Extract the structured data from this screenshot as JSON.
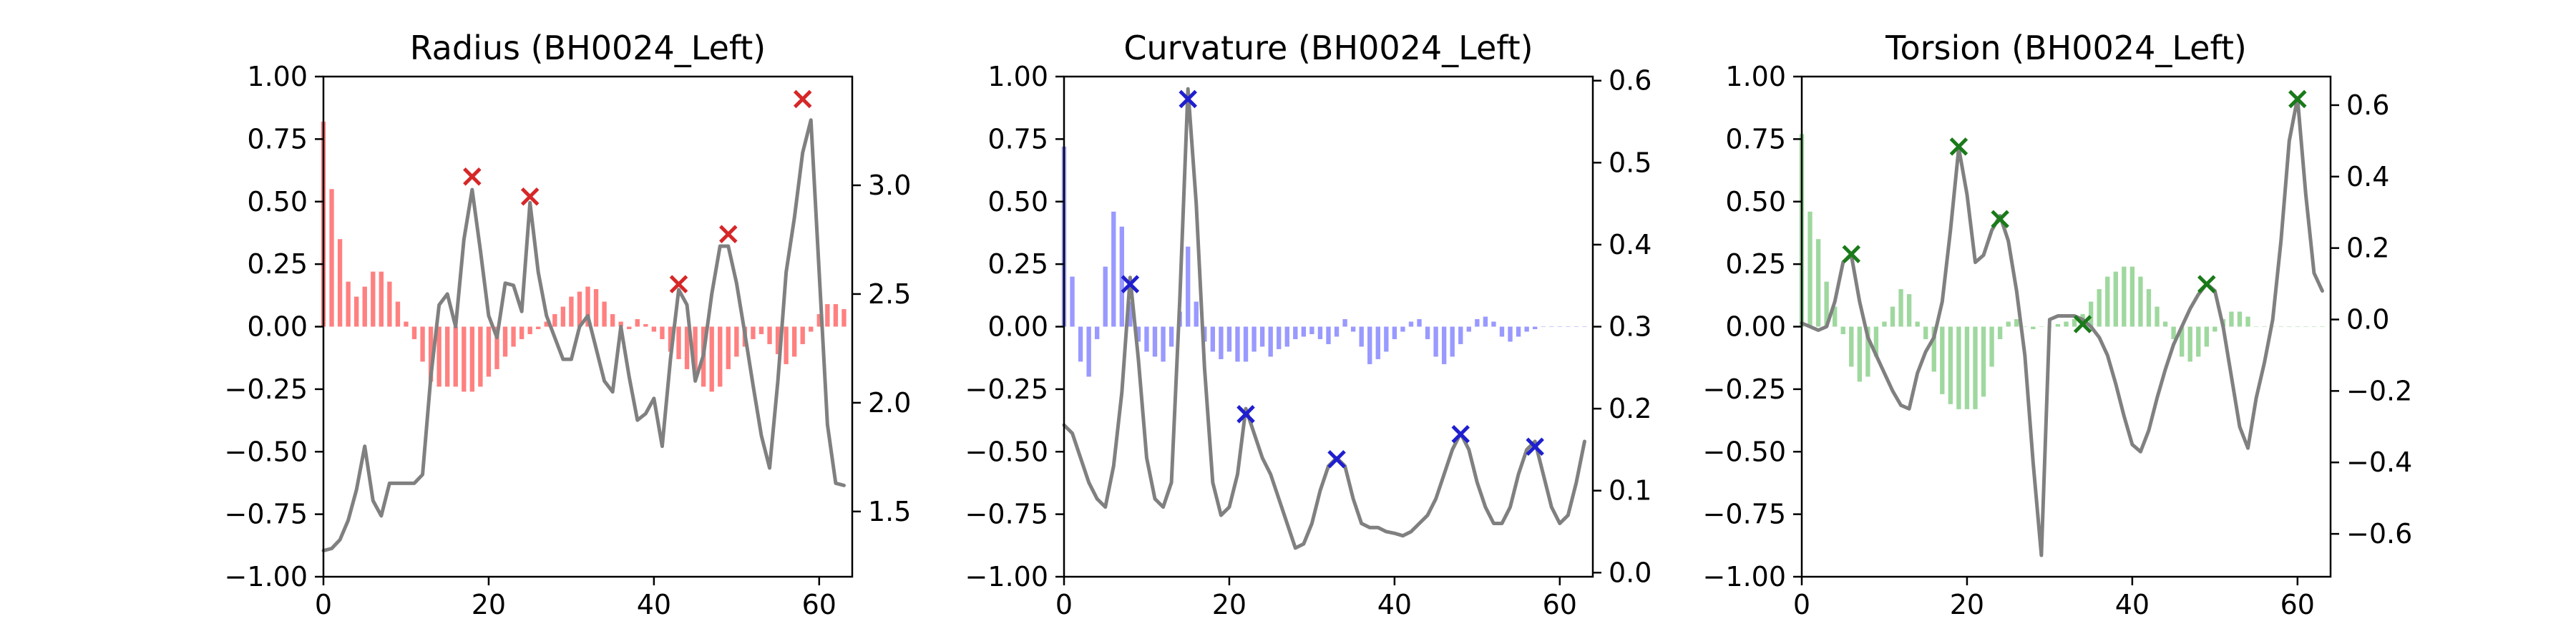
{
  "chart_data": [
    {
      "type": "bar",
      "title": "Radius (BH0024_Left)",
      "xlim": [
        0,
        64
      ],
      "ylim": [
        -1,
        1
      ],
      "xticks": [
        0,
        20,
        40,
        60
      ],
      "yticks": [
        -1.0,
        -0.75,
        -0.5,
        -0.25,
        0.0,
        0.25,
        0.5,
        0.75,
        1.0
      ],
      "y2lim": [
        1.2,
        3.5
      ],
      "y2ticks": [
        1.5,
        2.0,
        2.5,
        3.0
      ],
      "bar_color": "#ff8080",
      "line_color": "#808080",
      "marker_color": "#d62728",
      "bars": [
        0.82,
        0.55,
        0.35,
        0.18,
        0.12,
        0.16,
        0.22,
        0.22,
        0.18,
        0.1,
        0.02,
        -0.05,
        -0.14,
        -0.22,
        -0.24,
        -0.24,
        -0.24,
        -0.26,
        -0.26,
        -0.24,
        -0.2,
        -0.17,
        -0.12,
        -0.08,
        -0.05,
        -0.03,
        -0.01,
        0.02,
        0.05,
        0.08,
        0.12,
        0.14,
        0.16,
        0.15,
        0.1,
        0.05,
        0.02,
        -0.01,
        0.03,
        0.01,
        -0.02,
        -0.05,
        -0.1,
        -0.13,
        -0.17,
        -0.2,
        -0.24,
        -0.26,
        -0.24,
        -0.17,
        -0.12,
        -0.08,
        -0.05,
        -0.03,
        -0.07,
        -0.11,
        -0.15,
        -0.12,
        -0.07,
        -0.02,
        0.05,
        0.09,
        0.09,
        0.07
      ],
      "line": [
        1.32,
        1.33,
        1.37,
        1.46,
        1.6,
        1.8,
        1.55,
        1.48,
        1.63,
        1.63,
        1.63,
        1.63,
        1.67,
        2.12,
        2.45,
        2.5,
        2.35,
        2.75,
        2.98,
        2.7,
        2.4,
        2.3,
        2.55,
        2.54,
        2.42,
        2.92,
        2.6,
        2.4,
        2.3,
        2.2,
        2.2,
        2.35,
        2.4,
        2.25,
        2.1,
        2.05,
        2.35,
        2.12,
        1.92,
        1.95,
        2.02,
        1.8,
        2.2,
        2.52,
        2.45,
        2.1,
        2.22,
        2.5,
        2.72,
        2.72,
        2.55,
        2.32,
        2.08,
        1.85,
        1.7,
        2.1,
        2.6,
        2.85,
        3.15,
        3.3,
        2.6,
        1.9,
        1.63,
        1.62
      ],
      "peaks_x": [
        18,
        25,
        43,
        49,
        58
      ],
      "peaks_y": [
        0.6,
        0.52,
        0.17,
        0.37,
        0.91
      ]
    },
    {
      "type": "bar",
      "title": "Curvature (BH0024_Left)",
      "xlim": [
        0,
        64
      ],
      "ylim": [
        -1,
        1
      ],
      "xticks": [
        0,
        20,
        40,
        60
      ],
      "yticks": [
        -1.0,
        -0.75,
        -0.5,
        -0.25,
        0.0,
        0.25,
        0.5,
        0.75,
        1.0
      ],
      "y2lim": [
        -0.005,
        0.605
      ],
      "y2ticks": [
        0.0,
        0.1,
        0.2,
        0.3,
        0.4,
        0.5,
        0.6
      ],
      "bar_color": "#9999ff",
      "line_color": "#808080",
      "marker_color": "#1f1fcf",
      "bars": [
        0.72,
        0.2,
        -0.14,
        -0.2,
        -0.05,
        0.24,
        0.46,
        0.4,
        0.1,
        -0.06,
        -0.1,
        -0.12,
        -0.14,
        -0.08,
        0.06,
        0.32,
        0.1,
        -0.06,
        -0.1,
        -0.13,
        -0.1,
        -0.14,
        -0.14,
        -0.1,
        -0.08,
        -0.12,
        -0.09,
        -0.08,
        -0.05,
        -0.04,
        -0.03,
        -0.05,
        -0.07,
        -0.04,
        0.03,
        -0.02,
        -0.08,
        -0.15,
        -0.13,
        -0.1,
        -0.05,
        -0.02,
        0.02,
        0.03,
        -0.05,
        -0.12,
        -0.15,
        -0.12,
        -0.07,
        -0.02,
        0.03,
        0.04,
        0.02,
        -0.04,
        -0.06,
        -0.04,
        -0.02,
        -0.01,
        0.0,
        0.0,
        0.0,
        0.0,
        0.0,
        0.0
      ],
      "line": [
        0.18,
        0.17,
        0.14,
        0.11,
        0.09,
        0.08,
        0.13,
        0.22,
        0.36,
        0.26,
        0.14,
        0.09,
        0.08,
        0.11,
        0.33,
        0.59,
        0.45,
        0.25,
        0.11,
        0.07,
        0.08,
        0.12,
        0.2,
        0.17,
        0.14,
        0.12,
        0.09,
        0.06,
        0.03,
        0.035,
        0.06,
        0.1,
        0.13,
        0.14,
        0.13,
        0.09,
        0.06,
        0.055,
        0.055,
        0.05,
        0.048,
        0.045,
        0.05,
        0.06,
        0.07,
        0.09,
        0.12,
        0.15,
        0.17,
        0.15,
        0.11,
        0.08,
        0.06,
        0.06,
        0.08,
        0.12,
        0.15,
        0.16,
        0.12,
        0.08,
        0.06,
        0.07,
        0.11,
        0.16
      ],
      "peaks_x": [
        8,
        15,
        22,
        33,
        48,
        57
      ],
      "peaks_y": [
        0.17,
        0.91,
        -0.35,
        -0.53,
        -0.43,
        -0.48
      ]
    },
    {
      "type": "bar",
      "title": "Torsion (BH0024_Left)",
      "xlim": [
        0,
        64
      ],
      "ylim": [
        -1,
        1
      ],
      "xticks": [
        0,
        20,
        40,
        60
      ],
      "yticks": [
        -1.0,
        -0.75,
        -0.5,
        -0.25,
        0.0,
        0.25,
        0.5,
        0.75,
        1.0
      ],
      "y2lim": [
        -0.72,
        0.68
      ],
      "y2ticks": [
        -0.6,
        -0.4,
        -0.2,
        0.0,
        0.2,
        0.4,
        0.6
      ],
      "bar_color": "#9fd89f",
      "line_color": "#808080",
      "marker_color": "#1a7a1a",
      "bars": [
        0.77,
        0.46,
        0.35,
        0.18,
        0.08,
        -0.03,
        -0.16,
        -0.22,
        -0.2,
        -0.12,
        0.02,
        0.08,
        0.15,
        0.13,
        0.02,
        -0.05,
        -0.18,
        -0.27,
        -0.31,
        -0.33,
        -0.33,
        -0.33,
        -0.28,
        -0.16,
        -0.05,
        0.02,
        0.03,
        0.0,
        -0.01,
        0.0,
        0.0,
        0.01,
        0.02,
        0.03,
        0.05,
        0.1,
        0.15,
        0.2,
        0.22,
        0.24,
        0.24,
        0.2,
        0.15,
        0.08,
        0.02,
        -0.05,
        -0.12,
        -0.14,
        -0.12,
        -0.08,
        -0.02,
        0.03,
        0.06,
        0.06,
        0.04,
        0.0,
        0.0,
        0.0,
        0.0,
        0.0,
        0.0,
        0.0,
        0.0,
        0.0
      ],
      "line": [
        -0.01,
        -0.02,
        -0.03,
        -0.02,
        0.05,
        0.16,
        0.18,
        0.05,
        -0.05,
        -0.1,
        -0.15,
        -0.2,
        -0.24,
        -0.25,
        -0.15,
        -0.09,
        -0.05,
        0.05,
        0.25,
        0.48,
        0.35,
        0.16,
        0.18,
        0.25,
        0.29,
        0.22,
        0.08,
        -0.1,
        -0.4,
        -0.66,
        0.0,
        0.01,
        0.01,
        0.01,
        0.0,
        -0.02,
        -0.05,
        -0.1,
        -0.18,
        -0.27,
        -0.35,
        -0.37,
        -0.31,
        -0.22,
        -0.14,
        -0.07,
        -0.02,
        0.03,
        0.07,
        0.1,
        0.08,
        -0.02,
        -0.16,
        -0.3,
        -0.36,
        -0.22,
        -0.12,
        0.0,
        0.22,
        0.5,
        0.62,
        0.35,
        0.13,
        0.08
      ],
      "peaks_x": [
        6,
        19,
        24,
        34,
        49,
        60
      ],
      "peaks_y": [
        0.29,
        0.72,
        0.43,
        0.01,
        0.17,
        0.91
      ]
    }
  ]
}
